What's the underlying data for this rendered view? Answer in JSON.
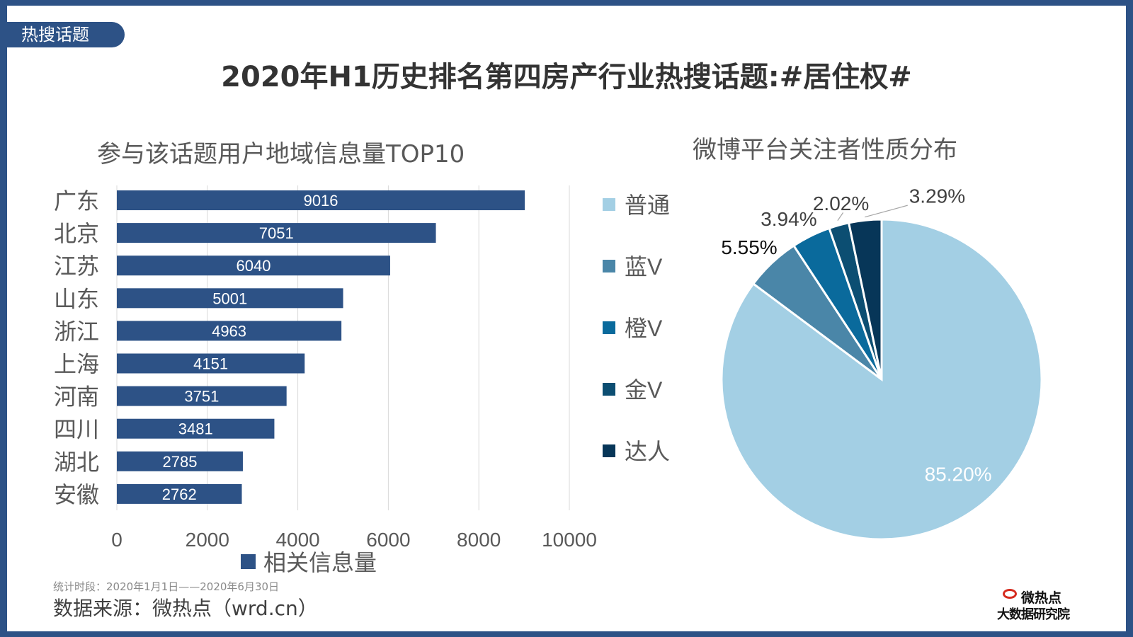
{
  "tag": "热搜话题",
  "title": "2020年H1历史排名第四房产行业热搜话题:#居住权#",
  "footer": {
    "period": "统计时段：2020年1月1日——2020年6月30日",
    "source": "数据来源：微热点（wrd.cn）"
  },
  "logo": {
    "line1": "微热点",
    "line2": "大数据研究院"
  },
  "colors": {
    "frame": "#2d5286",
    "bar": "#2d5286"
  },
  "chart_data": [
    {
      "type": "bar",
      "orientation": "horizontal",
      "title": "参与该话题用户地域信息量TOP10",
      "categories": [
        "广东",
        "北京",
        "江苏",
        "山东",
        "浙江",
        "上海",
        "河南",
        "四川",
        "湖北",
        "安徽"
      ],
      "series": [
        {
          "name": "相关信息量",
          "values": [
            9016,
            7051,
            6040,
            5001,
            4963,
            4151,
            3751,
            3481,
            2785,
            2762
          ],
          "color": "#2d5286"
        }
      ],
      "xlim": [
        0,
        10000
      ],
      "xticks": [
        "0",
        "2000",
        "4000",
        "6000",
        "8000",
        "10000"
      ],
      "grid": "vertical",
      "legend": "bottom",
      "data_labels": true
    },
    {
      "type": "pie",
      "title": "微博平台关注者性质分布",
      "labels": [
        "普通",
        "蓝V",
        "橙V",
        "金V",
        "达人"
      ],
      "values": [
        85.2,
        5.55,
        3.94,
        2.02,
        3.29
      ],
      "value_labels": [
        "85.20%",
        "5.55%",
        "3.94%",
        "2.02%",
        "3.29%"
      ],
      "colors": [
        "#a3cfe4",
        "#4a86a8",
        "#0a6a9c",
        "#0c4e72",
        "#073658"
      ],
      "start": "12 o'clock, clockwise",
      "legend": "left"
    }
  ]
}
